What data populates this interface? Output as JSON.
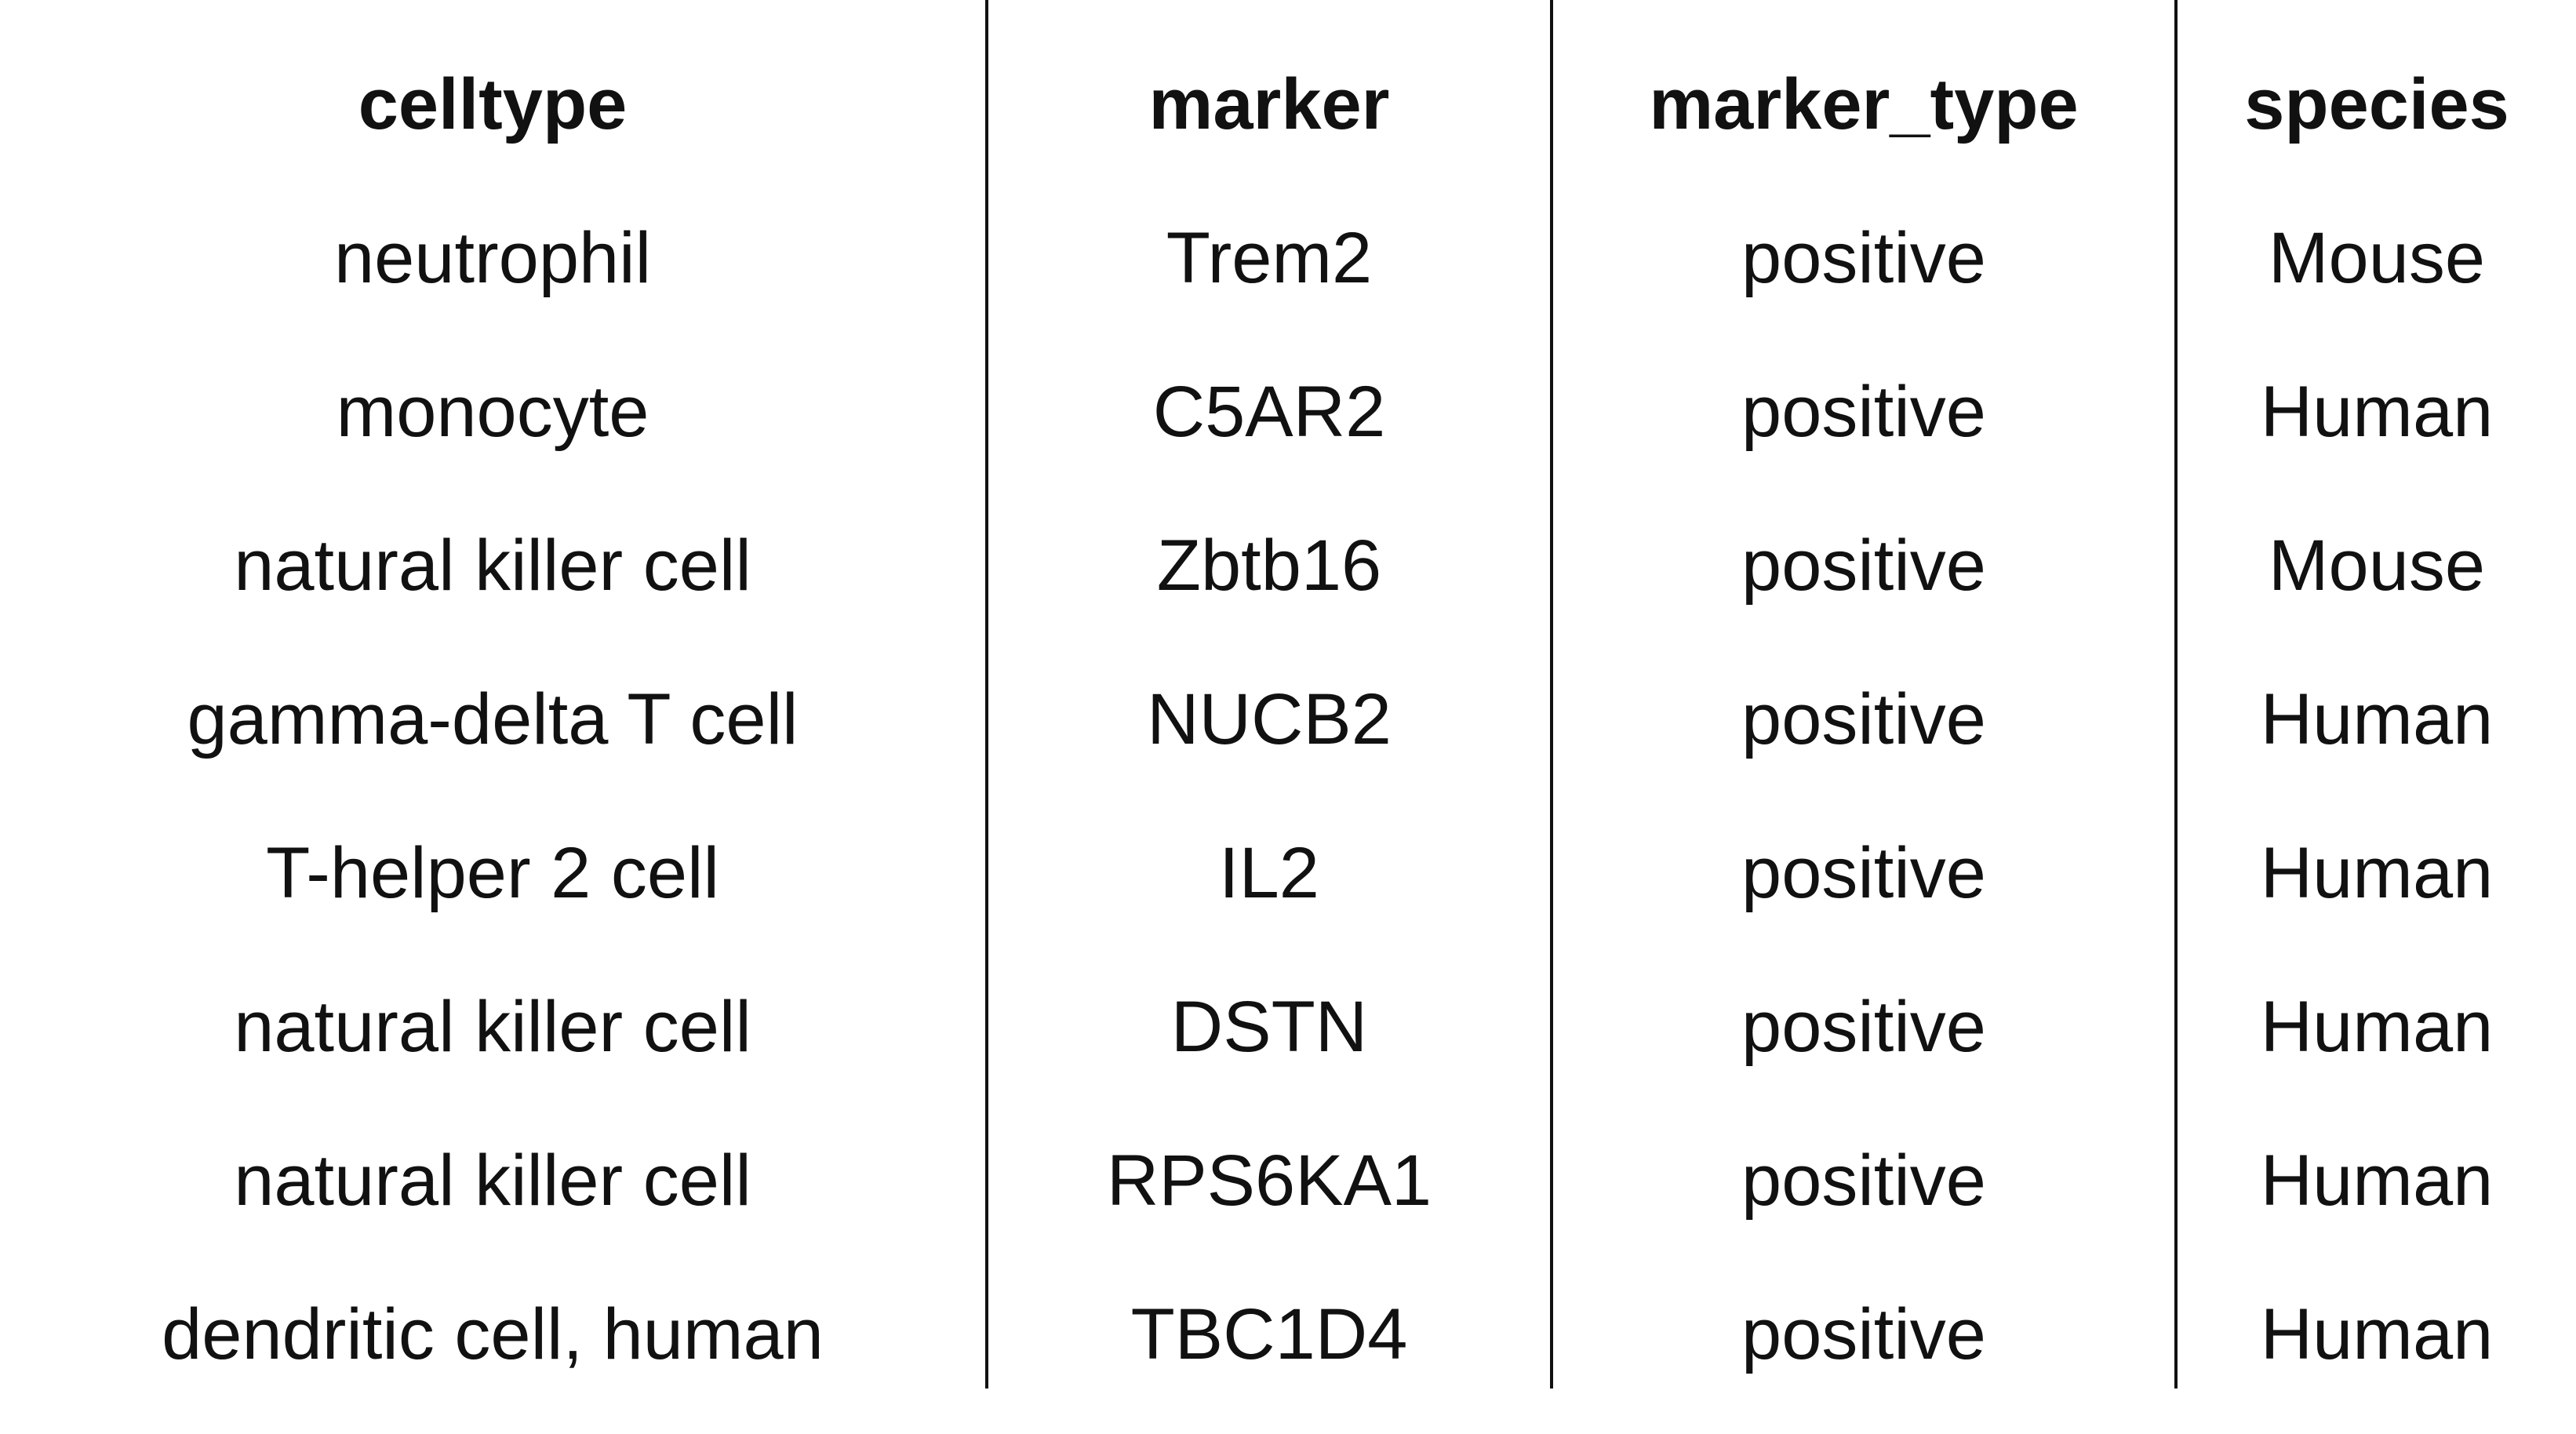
{
  "table": {
    "headers": [
      "celltype",
      "marker",
      "marker_type",
      "species"
    ],
    "rows": [
      [
        "neutrophil",
        "Trem2",
        "positive",
        "Mouse"
      ],
      [
        "monocyte",
        "C5AR2",
        "positive",
        "Human"
      ],
      [
        "natural killer cell",
        "Zbtb16",
        "positive",
        "Mouse"
      ],
      [
        "gamma-delta T cell",
        "NUCB2",
        "positive",
        "Human"
      ],
      [
        "T-helper 2 cell",
        "IL2",
        "positive",
        "Human"
      ],
      [
        "natural killer cell",
        "DSTN",
        "positive",
        "Human"
      ],
      [
        "natural killer cell",
        "RPS6KA1",
        "positive",
        "Human"
      ],
      [
        "dendritic cell, human",
        "TBC1D4",
        "positive",
        "Human"
      ]
    ]
  }
}
